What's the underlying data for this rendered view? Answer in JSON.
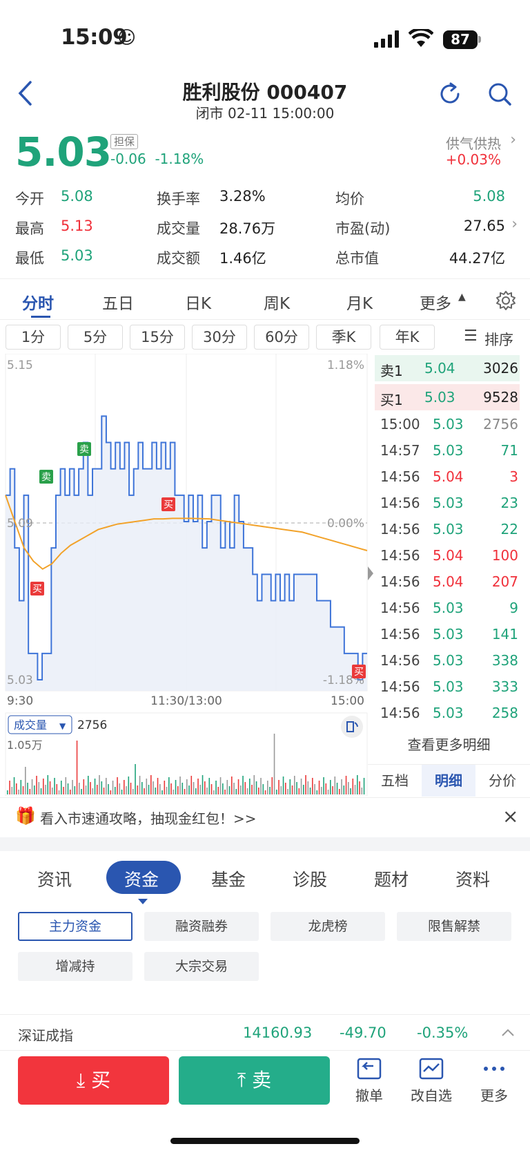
{
  "status_bar": {
    "time": "15:09",
    "battery": "87"
  },
  "header": {
    "title": "胜利股份 000407",
    "subtitle": "闭市 02-11 15:00:00"
  },
  "quote": {
    "price": "5.03",
    "margin_tag": "担保",
    "change": "-0.06  -1.18%",
    "supply_demand_label": "供气供热",
    "supply_demand_change": "+0.03%"
  },
  "stats": [
    {
      "label": "今开",
      "value": "5.08",
      "color": "#1fa37a"
    },
    {
      "label": "最高",
      "value": "5.13",
      "color": "#f0303a"
    },
    {
      "label": "最低",
      "value": "5.03",
      "color": "#1fa37a"
    },
    {
      "label": "换手率",
      "value": "3.28%"
    },
    {
      "label": "成交量",
      "value": "28.76万"
    },
    {
      "label": "成交额",
      "value": "1.46亿"
    },
    {
      "label": "均价",
      "value": "5.08",
      "color": "#1fa37a"
    },
    {
      "label": "市盈(动)",
      "value": "27.65"
    },
    {
      "label": "总市值",
      "value": "44.27亿"
    }
  ],
  "period_tabs": [
    "分时",
    "五日",
    "日K",
    "周K",
    "月K",
    "更多"
  ],
  "k_tabs": [
    "1分",
    "5分",
    "15分",
    "30分",
    "60分",
    "季K",
    "年K"
  ],
  "sort_label": "排序",
  "chart_data": {
    "type": "line",
    "title": "",
    "y_top": "5.15",
    "y_mid": "5.09",
    "y_bottom": "5.03",
    "pct_top": "1.18%",
    "pct_mid": "0.00%",
    "pct_bottom": "-1.18%",
    "x_labels": [
      "9:30",
      "11:30/13:00",
      "15:00"
    ],
    "ylim": [
      5.03,
      5.15
    ],
    "price": [
      5.1,
      5.11,
      5.08,
      5.06,
      5.1,
      5.04,
      5.04,
      5.03,
      5.04,
      5.04,
      5.08,
      5.1,
      5.11,
      5.1,
      5.11,
      5.1,
      5.11,
      5.12,
      5.1,
      5.11,
      5.11,
      5.13,
      5.12,
      5.11,
      5.12,
      5.11,
      5.12,
      5.1,
      5.11,
      5.12,
      5.11,
      5.11,
      5.12,
      5.11,
      5.12,
      5.11,
      5.12,
      5.1,
      5.1,
      5.09,
      5.1,
      5.09,
      5.1,
      5.08,
      5.09,
      5.1,
      5.1,
      5.08,
      5.09,
      5.08,
      5.1,
      5.09,
      5.08,
      5.08,
      5.07,
      5.06,
      5.07,
      5.07,
      5.06,
      5.07,
      5.06,
      5.07,
      5.06,
      5.07,
      5.07,
      5.07,
      5.07,
      5.07,
      5.06,
      5.06,
      5.06,
      5.05,
      5.05,
      5.05,
      5.04,
      5.04,
      5.04,
      5.03,
      5.04,
      5.04
    ],
    "avg": [
      5.1,
      5.09,
      5.08,
      5.075,
      5.072,
      5.074,
      5.078,
      5.081,
      5.083,
      5.085,
      5.087,
      5.088,
      5.089,
      5.0895,
      5.09,
      5.0905,
      5.091,
      5.091,
      5.0912,
      5.0912,
      5.0912,
      5.0911,
      5.091,
      5.0905,
      5.09,
      5.0895,
      5.089,
      5.0885,
      5.088,
      5.0875,
      5.087,
      5.0865,
      5.086,
      5.085,
      5.084,
      5.083,
      5.082,
      5.081,
      5.08,
      5.079
    ],
    "volume_label": "成交量",
    "volume_value": "2756",
    "volume_max": "1.05万"
  },
  "order_book": {
    "ask": {
      "label": "卖1",
      "price": "5.04",
      "vol": "3026"
    },
    "bid": {
      "label": "买1",
      "price": "5.03",
      "vol": "9528"
    }
  },
  "ticks": [
    {
      "time": "15:00",
      "price": "5.03",
      "vol": "2756",
      "dir": "gray"
    },
    {
      "time": "14:57",
      "price": "5.03",
      "vol": "71",
      "dir": "green"
    },
    {
      "time": "14:56",
      "price": "5.04",
      "vol": "3",
      "dir": "red"
    },
    {
      "time": "14:56",
      "price": "5.03",
      "vol": "23",
      "dir": "green"
    },
    {
      "time": "14:56",
      "price": "5.03",
      "vol": "22",
      "dir": "green"
    },
    {
      "time": "14:56",
      "price": "5.04",
      "vol": "100",
      "dir": "red"
    },
    {
      "time": "14:56",
      "price": "5.04",
      "vol": "207",
      "dir": "red"
    },
    {
      "time": "14:56",
      "price": "5.03",
      "vol": "9",
      "dir": "green"
    },
    {
      "time": "14:56",
      "price": "5.03",
      "vol": "141",
      "dir": "green"
    },
    {
      "time": "14:56",
      "price": "5.03",
      "vol": "338",
      "dir": "green"
    },
    {
      "time": "14:56",
      "price": "5.03",
      "vol": "333",
      "dir": "green"
    },
    {
      "time": "14:56",
      "price": "5.03",
      "vol": "258",
      "dir": "green"
    }
  ],
  "detail_more": "查看更多明细",
  "ob_tabs": [
    "五档",
    "明细",
    "分价"
  ],
  "banner": "看入市速通攻略，抽现金红包！>>",
  "news_tabs": [
    "资讯",
    "资金",
    "基金",
    "诊股",
    "题材",
    "资料"
  ],
  "chips": [
    "主力资金",
    "融资融券",
    "龙虎榜",
    "限售解禁",
    "增减持",
    "大宗交易"
  ],
  "index_bar": {
    "name": "深证成指",
    "value": "14160.93",
    "change": "-49.70",
    "pct": "-0.35%"
  },
  "bottom": {
    "buy": "买",
    "sell": "卖",
    "cancel": "撤单",
    "edit_watch": "改自选",
    "more": "更多"
  },
  "markers": {
    "buy": "买",
    "sell": "卖"
  }
}
